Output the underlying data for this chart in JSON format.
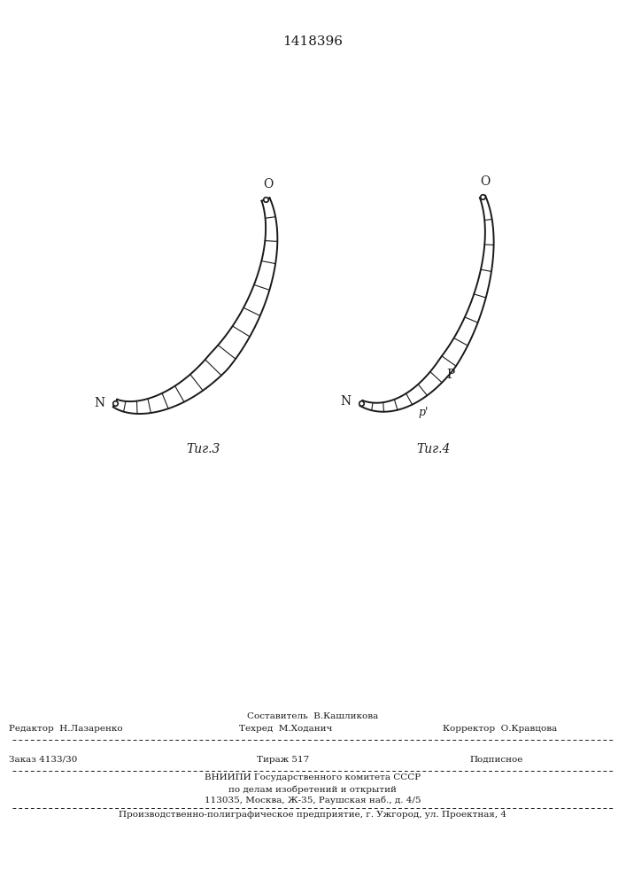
{
  "patent_number": "1418396",
  "background_color": "#ffffff",
  "line_color": "#1a1a1a",
  "fig3_label": "Τиг.3",
  "fig4_label": "Τиг.4",
  "footer_line1": "Составитель  В.Кашликова",
  "footer_line2a": "Редактор  Н.Лазаренко",
  "footer_line2b": "Техред  М.Ходанич",
  "footer_line2c": "Корректор  О.Кравцова",
  "footer_line3a": "Заказ 4133/30",
  "footer_line3b": "Тираж 517",
  "footer_line3c": "Подписное",
  "footer_line4": "ВНИИПИ Государственного комитета СССР",
  "footer_line5": "по делам изобретений и открытий",
  "footer_line6": "113035, Москва, Ж-35, Раушская наб., д. 4/5",
  "footer_line7": "Производственно-полиграфическое предприятие, г. Ужгород, ул. Проектная, 4"
}
